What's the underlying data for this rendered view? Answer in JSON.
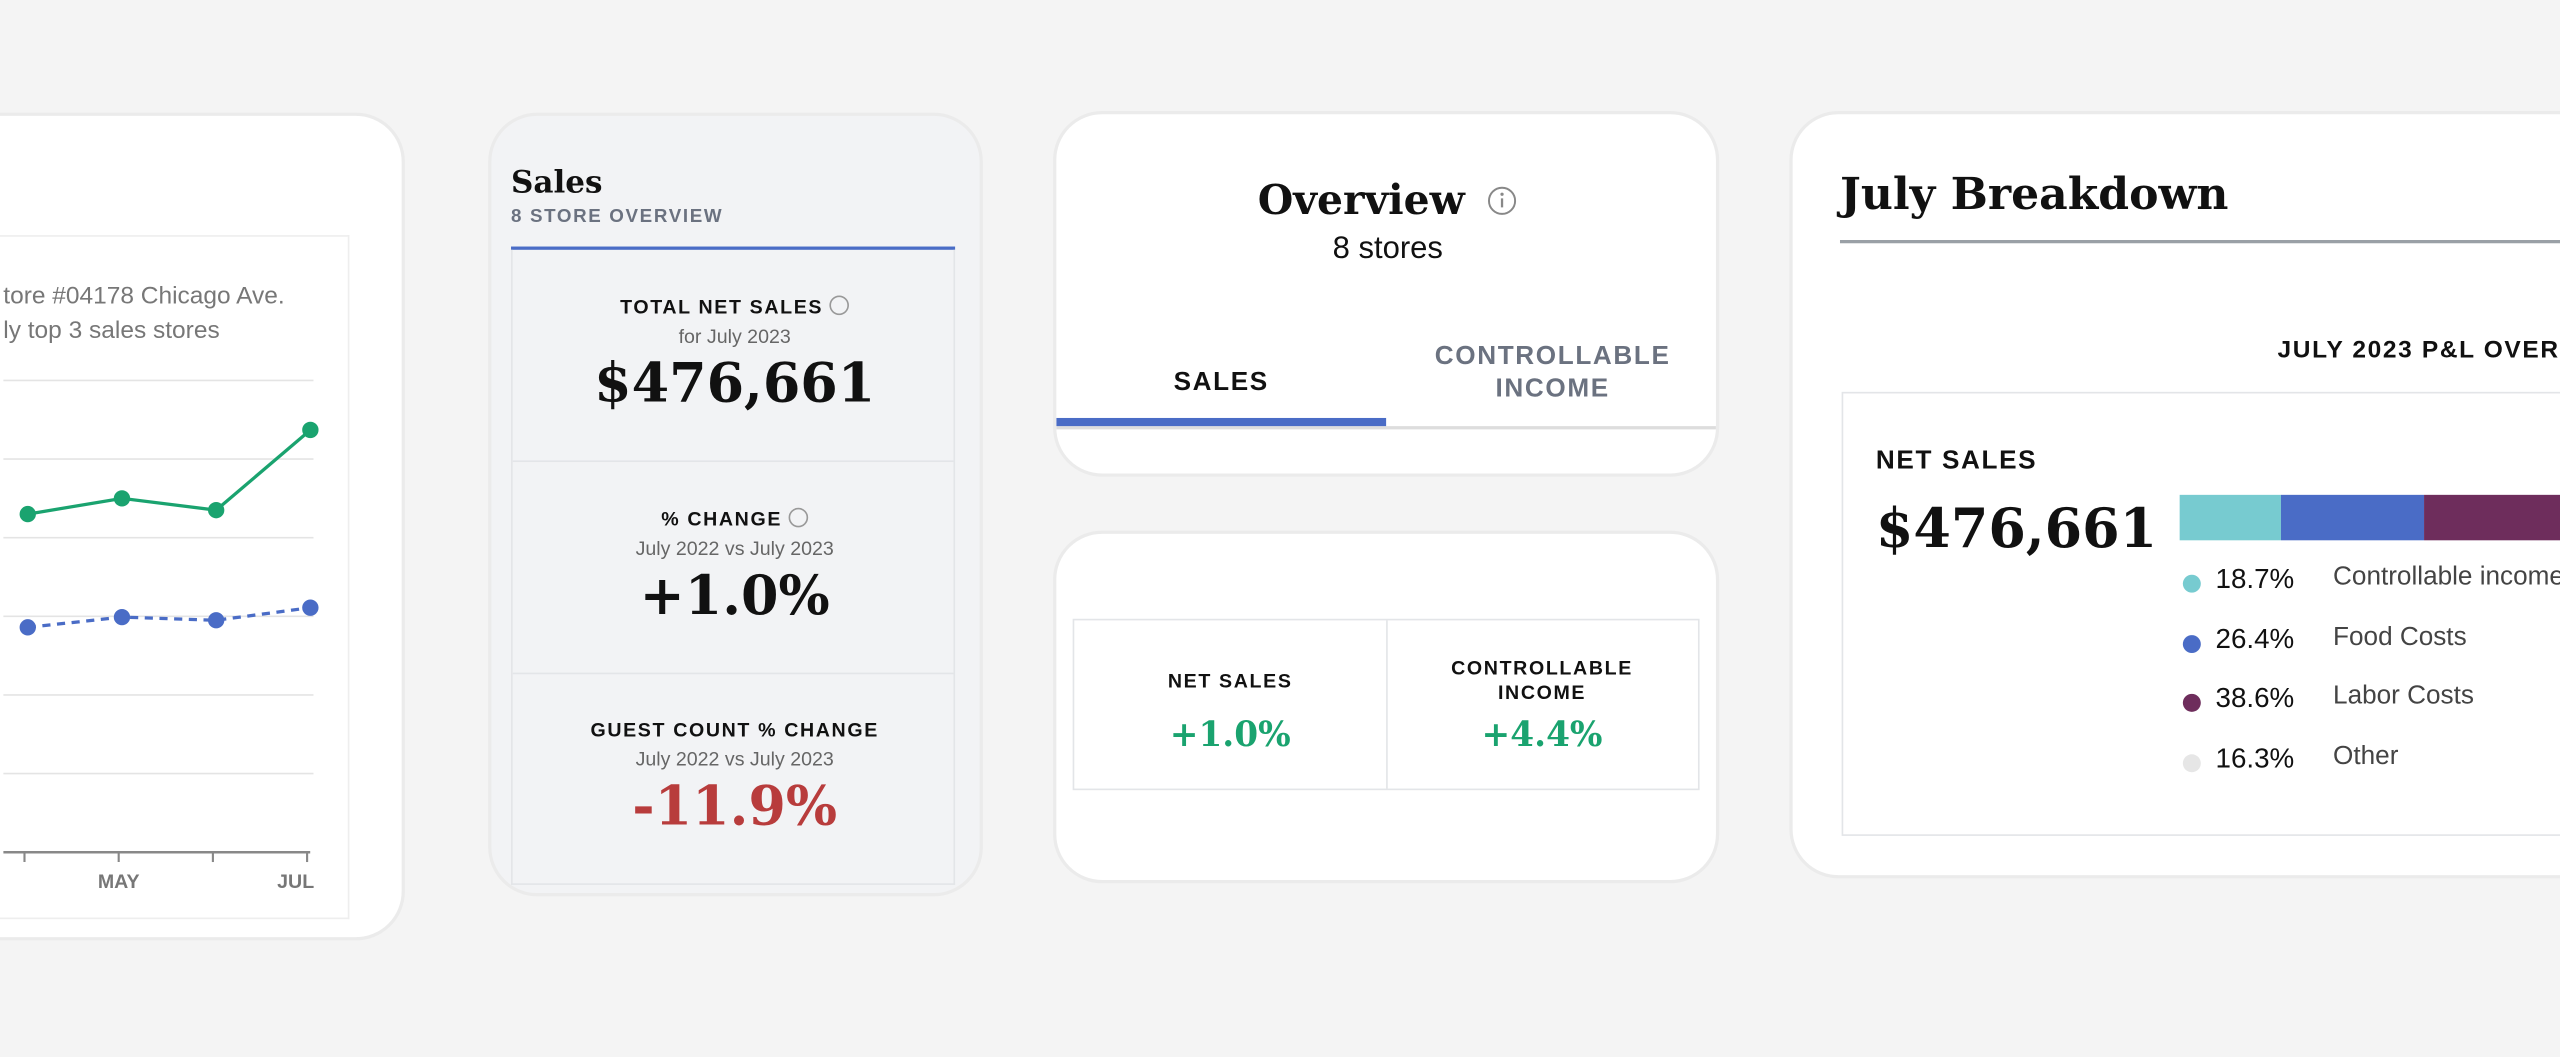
{
  "trend_card": {
    "legend": [
      "tore #04178 Chicago Ave.",
      "ly top 3 sales stores"
    ],
    "chart": {
      "type": "line",
      "categories": [
        null,
        "MAY",
        null,
        "JUL"
      ],
      "ylim": [
        0,
        6
      ],
      "series": [
        {
          "color": "#1aa36f",
          "dash": false,
          "values": [
            4.3,
            4.5,
            4.35,
            5.37
          ]
        },
        {
          "color": "#4a6cc6",
          "dash": true,
          "values": [
            2.86,
            2.99,
            2.95,
            3.11
          ]
        }
      ]
    }
  },
  "sales_card": {
    "title": "Sales",
    "subtitle": "8 STORE OVERVIEW",
    "metrics": [
      {
        "label": "TOTAL NET SALES",
        "sub": "for July 2023",
        "value": "$476,661",
        "tone": "neutral"
      },
      {
        "label": "% CHANGE",
        "sub": "July 2022 vs July 2023",
        "value": "+1.0%",
        "tone": "neutral"
      },
      {
        "label": "GUEST COUNT % CHANGE",
        "sub": "July 2022 vs July 2023",
        "value": "-11.9%",
        "tone": "negative"
      }
    ]
  },
  "overview_card": {
    "title": "Overview",
    "subtitle": "8 stores",
    "tabs": [
      "SALES",
      "CONTROLLABLE INCOME"
    ]
  },
  "change_card": {
    "cells": [
      {
        "label": "NET SALES",
        "value": "+1.0%"
      },
      {
        "label": "CONTROLLABLE INCOME",
        "value": "+4.4%"
      }
    ]
  },
  "breakdown_card": {
    "title": "July Breakdown",
    "chart_title": "JULY 2023 P&L OVER",
    "metric_label": "NET SALES",
    "metric_value": "$476,661",
    "chart": {
      "type": "bar",
      "stacked": true,
      "xlim": [
        0,
        100
      ],
      "series": [
        {
          "name": "Controllable income",
          "color": "#77cbd0",
          "values": [
            18.7
          ],
          "value_labels": [
            "18.7%"
          ]
        },
        {
          "name": "Food Costs",
          "color": "#4a6cc6",
          "values": [
            26.4
          ],
          "value_labels": [
            "26.4%"
          ]
        },
        {
          "name": "Labor Costs",
          "color": "#6e2d5c",
          "values": [
            38.6
          ],
          "value_labels": [
            "38.6%"
          ]
        },
        {
          "name": "Other",
          "color": "#e6e6e6",
          "values": [
            16.3
          ],
          "value_labels": [
            "16.3%"
          ]
        }
      ]
    }
  }
}
